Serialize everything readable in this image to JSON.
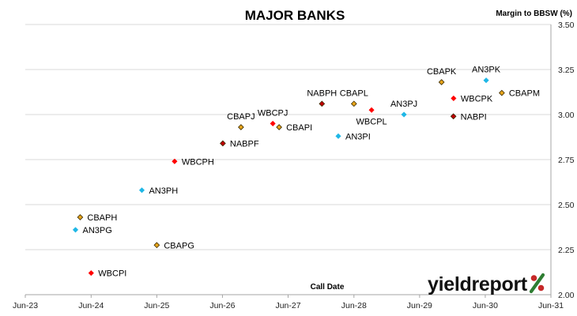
{
  "chart_data": {
    "type": "scatter",
    "title": "MAJOR BANKS",
    "ylabel": "Margin to BBSW (%)",
    "xlabel": "Call Date",
    "x_ticks": [
      "Jun-23",
      "Jun-24",
      "Jun-25",
      "Jun-26",
      "Jun-27",
      "Jun-28",
      "Jun-29",
      "Jun-30",
      "Jun-31"
    ],
    "y_ticks": [
      "2.00",
      "2.25",
      "2.50",
      "2.75",
      "3.00",
      "3.25",
      "3.50"
    ],
    "ylim": [
      2.0,
      3.5
    ],
    "xlim": [
      "2023-06",
      "2031-06"
    ],
    "grid": "horizontal",
    "colors": {
      "WBC": "#ff0000",
      "CBA": "#e8a51a",
      "NAB": "#c00000",
      "ANZ": "#1fb7e6",
      "diamond_edge": "#3a2a00",
      "grid": "#d9d9d9"
    },
    "points": [
      {
        "label": "WBCPI",
        "issuer": "WBC",
        "call_date": "2024-06-15",
        "margin": 2.12,
        "label_side": "right"
      },
      {
        "label": "AN3PG",
        "issuer": "ANZ",
        "call_date": "2024-03-20",
        "margin": 2.36,
        "label_side": "right"
      },
      {
        "label": "CBAPH",
        "issuer": "CBA",
        "call_date": "2024-04-15",
        "margin": 2.43,
        "label_side": "right"
      },
      {
        "label": "CBAPG",
        "issuer": "CBA",
        "call_date": "2025-06-15",
        "margin": 2.275,
        "label_side": "right"
      },
      {
        "label": "AN3PH",
        "issuer": "ANZ",
        "call_date": "2025-03-24",
        "margin": 2.58,
        "label_side": "right"
      },
      {
        "label": "WBCPH",
        "issuer": "WBC",
        "call_date": "2025-09-22",
        "margin": 2.74,
        "label_side": "right"
      },
      {
        "label": "NABPF",
        "issuer": "NAB",
        "call_date": "2026-06-17",
        "margin": 2.84,
        "label_side": "right"
      },
      {
        "label": "CBAPJ",
        "issuer": "CBA",
        "call_date": "2026-09-26",
        "margin": 2.93,
        "label_side": "above"
      },
      {
        "label": "WBCPJ",
        "issuer": "WBC",
        "call_date": "2027-03-22",
        "margin": 2.95,
        "label_side": "above"
      },
      {
        "label": "CBAPI",
        "issuer": "CBA",
        "call_date": "2027-04-26",
        "margin": 2.93,
        "label_side": "right"
      },
      {
        "label": "NABPH",
        "issuer": "NAB",
        "call_date": "2027-12-20",
        "margin": 3.06,
        "label_side": "above"
      },
      {
        "label": "AN3PI",
        "issuer": "ANZ",
        "call_date": "2028-03-20",
        "margin": 2.88,
        "label_side": "right"
      },
      {
        "label": "CBAPL",
        "issuer": "CBA",
        "call_date": "2028-06-15",
        "margin": 3.06,
        "label_side": "above"
      },
      {
        "label": "WBCPL",
        "issuer": "WBC",
        "call_date": "2028-09-21",
        "margin": 3.025,
        "label_side": "below"
      },
      {
        "label": "AN3PJ",
        "issuer": "ANZ",
        "call_date": "2029-03-20",
        "margin": 3.0,
        "label_side": "above"
      },
      {
        "label": "CBAPK",
        "issuer": "CBA",
        "call_date": "2029-10-15",
        "margin": 3.18,
        "label_side": "above"
      },
      {
        "label": "WBCPK",
        "issuer": "WBC",
        "call_date": "2029-12-21",
        "margin": 3.09,
        "label_side": "right"
      },
      {
        "label": "NABPI",
        "issuer": "NAB",
        "call_date": "2029-12-20",
        "margin": 2.99,
        "label_side": "right"
      },
      {
        "label": "AN3PK",
        "issuer": "ANZ",
        "call_date": "2030-06-20",
        "margin": 3.19,
        "label_side": "above"
      },
      {
        "label": "CBAPM",
        "issuer": "CBA",
        "call_date": "2030-09-15",
        "margin": 3.12,
        "label_side": "right"
      }
    ]
  },
  "logo": {
    "text": "yieldreport",
    "symbol": "%",
    "colors": {
      "text": "#111111",
      "slash": "#2e7d32",
      "circles": "#c62828"
    }
  }
}
